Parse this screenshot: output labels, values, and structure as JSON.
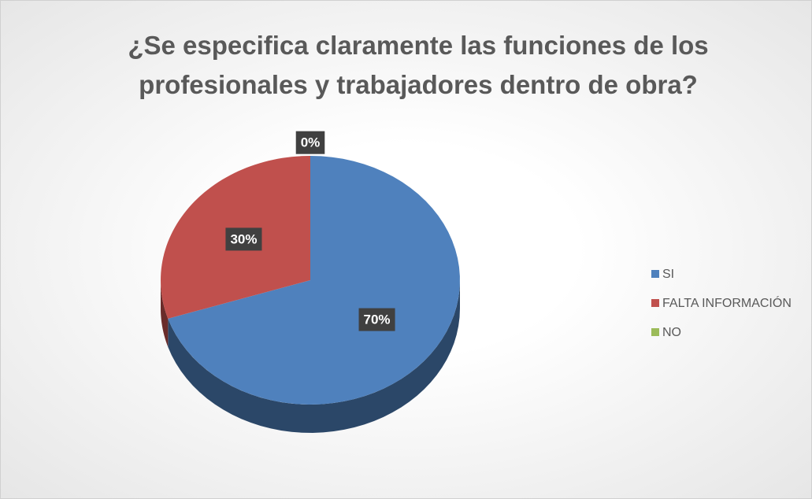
{
  "chart_data": {
    "type": "pie",
    "title": "¿Se especifica claramente las funciones de los profesionales y trabajadores dentro de obra?",
    "categories": [
      "SI",
      "FALTA INFORMACIÓN",
      "NO"
    ],
    "values": [
      70,
      30,
      0
    ],
    "value_labels": [
      "70%",
      "30%",
      "0%"
    ],
    "colors": [
      "#4f81bd",
      "#c0504d",
      "#9bbb59"
    ],
    "legend": "right"
  }
}
